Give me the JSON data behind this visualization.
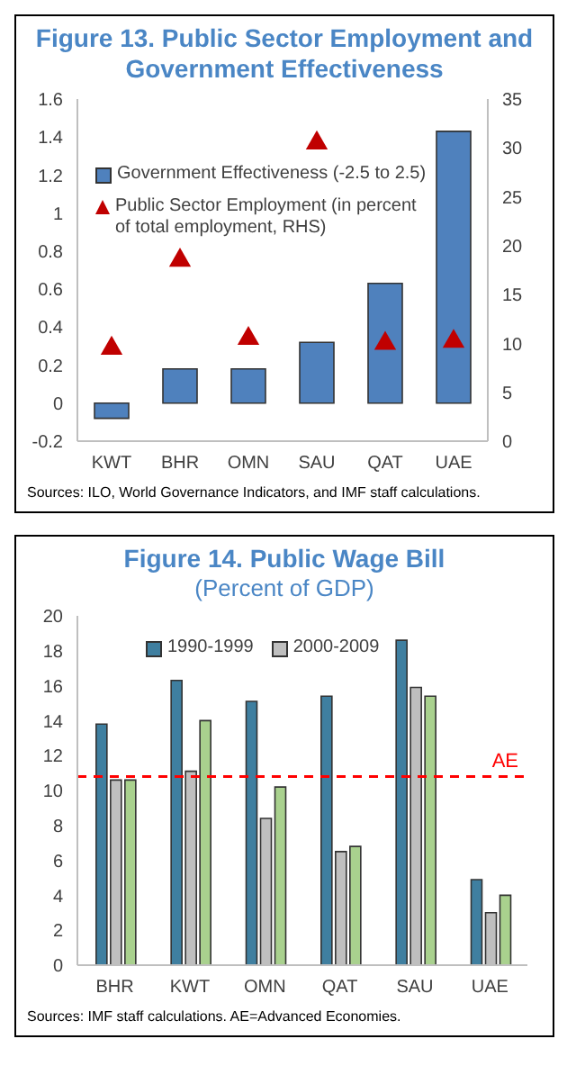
{
  "chart_data": [
    {
      "type": "bar",
      "title": "Figure 13. Public Sector Employment and Government Effectiveness",
      "annotations": [
        "Sources: ILO, World Governance Indicators, and IMF staff calculations."
      ],
      "categories": [
        "KWT",
        "BHR",
        "OMN",
        "SAU",
        "QAT",
        "UAE"
      ],
      "series": [
        {
          "name": "Government Effectiveness (-2.5 to 2.5)",
          "color": "#4f81bd",
          "values": [
            -0.08,
            0.18,
            0.18,
            0.32,
            0.63,
            1.43
          ]
        },
        {
          "name": "Public Sector Employment (in percent of total employment, RHS)",
          "type": "scatter",
          "axis": "y2",
          "marker": "triangle",
          "color": "#c00000",
          "values": [
            9.5,
            18.5,
            10.5,
            30.5,
            10,
            10.2
          ]
        }
      ],
      "ylim": [
        -0.2,
        1.6
      ],
      "yticks": [
        -0.2,
        0,
        0.2,
        0.4,
        0.6,
        0.8,
        1,
        1.2,
        1.4,
        1.6
      ],
      "y2lim": [
        0,
        35
      ],
      "y2ticks": [
        0,
        5,
        10,
        15,
        20,
        25,
        30,
        35
      ],
      "grid": false,
      "legend": "top left"
    },
    {
      "type": "bar",
      "title": "Figure 14. Public Wage Bill",
      "subtitle": "(Percent of GDP)",
      "annotations": [
        "Sources: IMF staff calculations. AE=Advanced Economies."
      ],
      "categories": [
        "BHR",
        "KWT",
        "OMN",
        "QAT",
        "SAU",
        "UAE"
      ],
      "series": [
        {
          "name": "1990-1999",
          "color": "#3f7fa0",
          "values": [
            13.8,
            16.3,
            15.1,
            15.4,
            18.6,
            4.9
          ]
        },
        {
          "name": "2000-2009",
          "color": "#bfbfbf",
          "values": [
            10.6,
            11.1,
            8.4,
            6.5,
            15.9,
            3.0
          ]
        },
        {
          "color": "#a9d18e",
          "values": [
            10.6,
            14.0,
            10.2,
            6.8,
            15.4,
            4.0
          ]
        }
      ],
      "ylim": [
        0,
        20
      ],
      "yticks": [
        0,
        2,
        4,
        6,
        8,
        10,
        12,
        14,
        16,
        18,
        20
      ],
      "grid": false,
      "legend": "top",
      "ref_lines": [
        {
          "axis": "y",
          "value": 10.8,
          "label": "AE",
          "color": "#ff0000",
          "line_style": "dashed"
        }
      ]
    }
  ]
}
